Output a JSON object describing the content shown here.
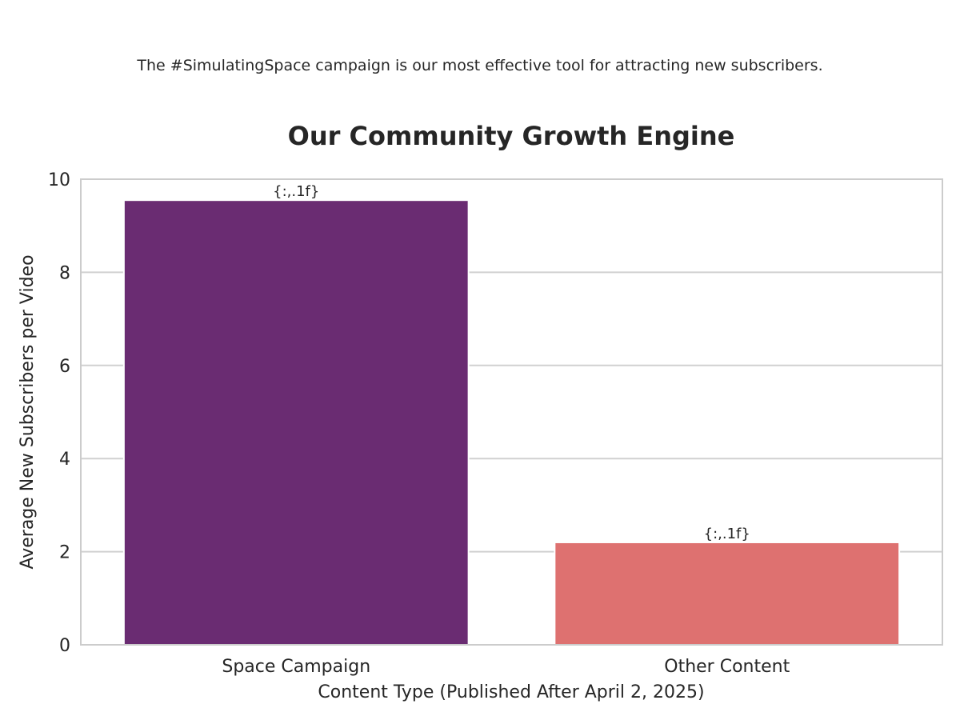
{
  "chart_data": {
    "type": "bar",
    "subtitle": "The #SimulatingSpace campaign is our most effective tool for attracting new subscribers.",
    "title": "Our Community Growth Engine",
    "xlabel": "Content Type (Published After April 2, 2025)",
    "ylabel": "Average New Subscribers per Video",
    "categories": [
      "Space Campaign",
      "Other Content"
    ],
    "values": [
      9.55,
      2.2
    ],
    "bar_labels": [
      "{:,.1f}",
      "{:,.1f}"
    ],
    "colors": [
      "#6a2c72",
      "#de7170"
    ],
    "ylim": [
      0,
      10
    ],
    "yticks": [
      0,
      2,
      4,
      6,
      8,
      10
    ],
    "grid": "y-axis horizontal",
    "legend": "none"
  }
}
